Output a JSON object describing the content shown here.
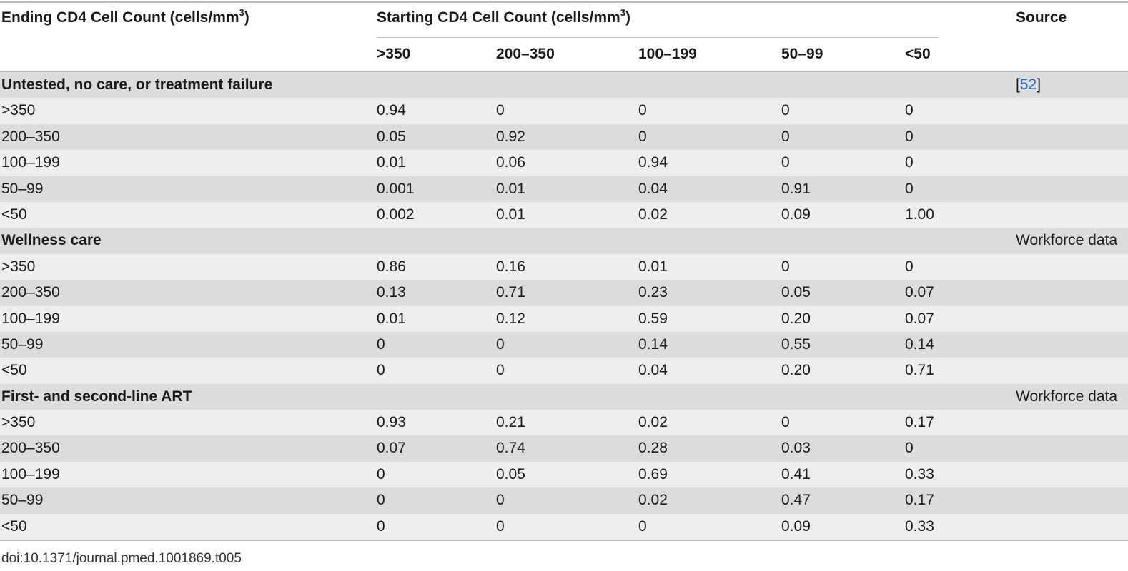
{
  "header": {
    "ending_label": "Ending CD4 Cell Count (cells/mm",
    "ending_sup": "3",
    "ending_close": ")",
    "starting_label": "Starting CD4 Cell Count (cells/mm",
    "starting_sup": "3",
    "starting_close": ")",
    "source_label": "Source",
    "columns": [
      ">350",
      "200–350",
      "100–199",
      "50–99",
      "<50"
    ]
  },
  "sections": [
    {
      "title": "Untested, no care, or treatment failure",
      "source_prefix": "[",
      "source_link": "52",
      "source_suffix": "]",
      "rows": [
        {
          "label": ">350",
          "values": [
            "0.94",
            "0",
            "0",
            "0",
            "0"
          ]
        },
        {
          "label": "200–350",
          "values": [
            "0.05",
            "0.92",
            "0",
            "0",
            "0"
          ]
        },
        {
          "label": "100–199",
          "values": [
            "0.01",
            "0.06",
            "0.94",
            "0",
            "0"
          ]
        },
        {
          "label": "50–99",
          "values": [
            "0.001",
            "0.01",
            "0.04",
            "0.91",
            "0"
          ]
        },
        {
          "label": "<50",
          "values": [
            "0.002",
            "0.01",
            "0.02",
            "0.09",
            "1.00"
          ]
        }
      ]
    },
    {
      "title": "Wellness care",
      "source_text": "Workforce data",
      "rows": [
        {
          "label": ">350",
          "values": [
            "0.86",
            "0.16",
            "0.01",
            "0",
            "0"
          ]
        },
        {
          "label": "200–350",
          "values": [
            "0.13",
            "0.71",
            "0.23",
            "0.05",
            "0.07"
          ]
        },
        {
          "label": "100–199",
          "values": [
            "0.01",
            "0.12",
            "0.59",
            "0.20",
            "0.07"
          ]
        },
        {
          "label": "50–99",
          "values": [
            "0",
            "0",
            "0.14",
            "0.55",
            "0.14"
          ]
        },
        {
          "label": "<50",
          "values": [
            "0",
            "0",
            "0.04",
            "0.20",
            "0.71"
          ]
        }
      ]
    },
    {
      "title": "First- and second-line ART",
      "source_text": "Workforce data",
      "rows": [
        {
          "label": ">350",
          "values": [
            "0.93",
            "0.21",
            "0.02",
            "0",
            "0.17"
          ]
        },
        {
          "label": "200–350",
          "values": [
            "0.07",
            "0.74",
            "0.28",
            "0.03",
            "0"
          ]
        },
        {
          "label": "100–199",
          "values": [
            "0",
            "0.05",
            "0.69",
            "0.41",
            "0.33"
          ]
        },
        {
          "label": "50–99",
          "values": [
            "0",
            "0",
            "0.02",
            "0.47",
            "0.17"
          ]
        },
        {
          "label": "<50",
          "values": [
            "0",
            "0",
            "0",
            "0.09",
            "0.33"
          ]
        }
      ]
    }
  ],
  "footer": {
    "doi": "doi:10.1371/journal.pmed.1001869.t005"
  },
  "colors": {
    "row_shade_dark": "#dcdcde",
    "row_shade_light": "#eeeef0",
    "rule": "#bdbdbd",
    "link": "#2a6ebb"
  }
}
